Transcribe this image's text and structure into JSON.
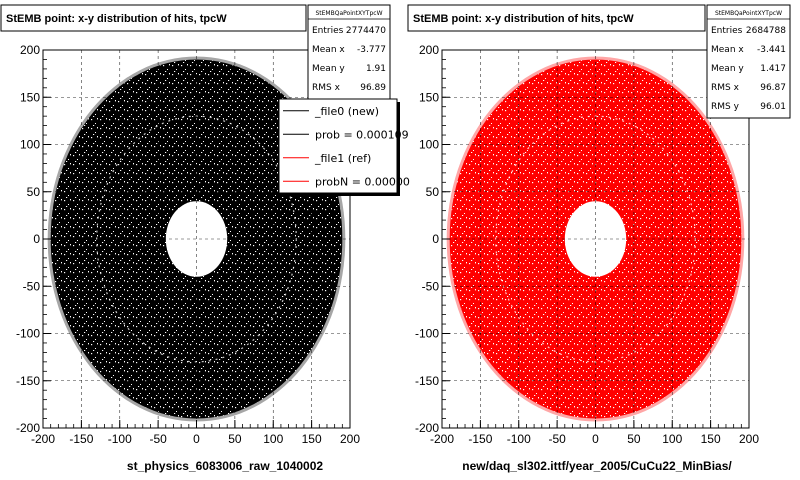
{
  "chart_data": [
    {
      "type": "scatter",
      "subtype": "2d-histogram",
      "title": "StEMB point: x-y distribution of hits, tpcW",
      "xlabel": "st_physics_6083006_raw_1040002",
      "ylabel": "",
      "xlim": [
        -200,
        200
      ],
      "ylim": [
        -200,
        200
      ],
      "xticks": [
        -200,
        -150,
        -100,
        -50,
        0,
        50,
        100,
        150,
        200
      ],
      "yticks": [
        -200,
        -150,
        -100,
        -50,
        0,
        50,
        100,
        150,
        200
      ],
      "grid": true,
      "color": "#000000",
      "distribution": {
        "shape": "annulus",
        "inner_radius": 40,
        "outer_radius": 190,
        "center": [
          0,
          0
        ]
      },
      "stats": {
        "name": "StEMBQaPointXYTpcW",
        "rows": [
          {
            "label": "Entries",
            "value": "2774470"
          },
          {
            "label": "Mean x",
            "value": "-3.777"
          },
          {
            "label": "Mean y",
            "value": "1.91"
          },
          {
            "label": "RMS x",
            "value": "96.89"
          }
        ]
      },
      "legend": {
        "placement": "top-right",
        "entries": [
          {
            "label": "_file0 (new)",
            "color": "#000000"
          },
          {
            "label": "prob = 0.000109",
            "color": "#000000"
          },
          {
            "label": "_file1 (ref)",
            "color": "#ff0000"
          },
          {
            "label": "probN = 0.00000",
            "color": "#ff0000"
          }
        ]
      }
    },
    {
      "type": "scatter",
      "subtype": "2d-histogram",
      "title": "StEMB point: x-y distribution of hits, tpcW",
      "xlabel": "new/daq_sl302.ittf/year_2005/CuCu22_MinBias/",
      "ylabel": "",
      "xlim": [
        -200,
        200
      ],
      "ylim": [
        -200,
        200
      ],
      "xticks": [
        -200,
        -150,
        -100,
        -50,
        0,
        50,
        100,
        150,
        200
      ],
      "yticks": [
        -200,
        -150,
        -100,
        -50,
        0,
        50,
        100,
        150,
        200
      ],
      "grid": true,
      "color": "#ff0000",
      "distribution": {
        "shape": "annulus",
        "inner_radius": 40,
        "outer_radius": 190,
        "center": [
          0,
          0
        ]
      },
      "stats": {
        "name": "StEMBQaPointXYTpcW",
        "rows": [
          {
            "label": "Entries",
            "value": "2684788"
          },
          {
            "label": "Mean x",
            "value": "-3.441"
          },
          {
            "label": "Mean y",
            "value": "1.417"
          },
          {
            "label": "RMS x",
            "value": "96.87"
          },
          {
            "label": "RMS y",
            "value": "96.01"
          }
        ]
      }
    }
  ]
}
